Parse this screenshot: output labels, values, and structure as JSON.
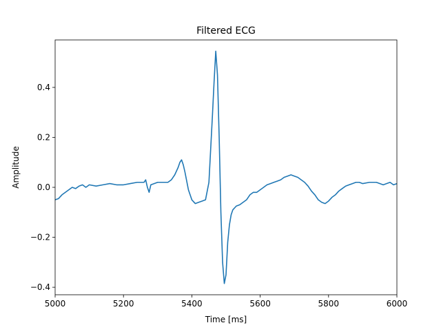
{
  "chart_data": {
    "type": "line",
    "title": "Filtered ECG",
    "xlabel": "Time [ms]",
    "ylabel": "Amplitude",
    "xlim": [
      5000,
      6000
    ],
    "ylim": [
      -0.43,
      0.59
    ],
    "grid": false,
    "x_ticks": [
      5000,
      5200,
      5400,
      5600,
      5800,
      6000
    ],
    "x_tick_labels": [
      "5000",
      "5200",
      "5400",
      "5600",
      "5800",
      "6000"
    ],
    "y_ticks": [
      -0.4,
      -0.2,
      0.0,
      0.2,
      0.4
    ],
    "y_tick_labels": [
      "−0.4",
      "−0.2",
      "0.0",
      "0.2",
      "0.4"
    ],
    "series": [
      {
        "color": "#1f77b4",
        "x": [
          5000,
          5010,
          5020,
          5030,
          5040,
          5050,
          5060,
          5070,
          5080,
          5090,
          5100,
          5120,
          5140,
          5160,
          5180,
          5200,
          5220,
          5240,
          5260,
          5265,
          5270,
          5275,
          5280,
          5300,
          5320,
          5330,
          5340,
          5350,
          5360,
          5365,
          5370,
          5375,
          5380,
          5390,
          5400,
          5410,
          5420,
          5430,
          5440,
          5450,
          5455,
          5460,
          5465,
          5470,
          5475,
          5480,
          5485,
          5490,
          5495,
          5500,
          5505,
          5510,
          5515,
          5520,
          5530,
          5540,
          5550,
          5560,
          5570,
          5580,
          5590,
          5600,
          5610,
          5620,
          5630,
          5640,
          5650,
          5660,
          5670,
          5680,
          5690,
          5700,
          5710,
          5720,
          5730,
          5740,
          5750,
          5760,
          5770,
          5780,
          5790,
          5800,
          5810,
          5820,
          5830,
          5840,
          5850,
          5860,
          5870,
          5880,
          5890,
          5900,
          5920,
          5940,
          5960,
          5980,
          5990,
          6000
        ],
        "y": [
          -0.05,
          -0.045,
          -0.03,
          -0.02,
          -0.01,
          0.0,
          -0.005,
          0.005,
          0.01,
          0.0,
          0.01,
          0.005,
          0.01,
          0.015,
          0.01,
          0.01,
          0.015,
          0.02,
          0.02,
          0.03,
          0.0,
          -0.02,
          0.01,
          0.02,
          0.02,
          0.02,
          0.03,
          0.05,
          0.08,
          0.1,
          0.11,
          0.09,
          0.06,
          -0.01,
          -0.05,
          -0.065,
          -0.06,
          -0.055,
          -0.05,
          0.02,
          0.15,
          0.28,
          0.42,
          0.545,
          0.45,
          0.2,
          -0.1,
          -0.3,
          -0.385,
          -0.35,
          -0.22,
          -0.15,
          -0.11,
          -0.09,
          -0.075,
          -0.07,
          -0.06,
          -0.05,
          -0.03,
          -0.02,
          -0.02,
          -0.01,
          0.0,
          0.01,
          0.015,
          0.02,
          0.025,
          0.03,
          0.04,
          0.045,
          0.05,
          0.045,
          0.04,
          0.03,
          0.02,
          0.005,
          -0.015,
          -0.03,
          -0.05,
          -0.06,
          -0.065,
          -0.055,
          -0.04,
          -0.03,
          -0.015,
          -0.005,
          0.005,
          0.01,
          0.015,
          0.02,
          0.02,
          0.015,
          0.02,
          0.02,
          0.01,
          0.02,
          0.01,
          0.015
        ]
      }
    ]
  }
}
